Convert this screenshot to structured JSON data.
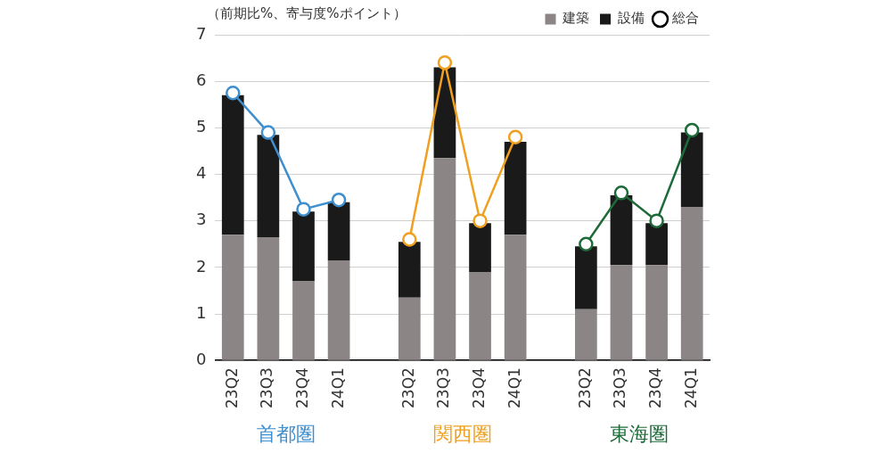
{
  "chart_data": {
    "type": "bar",
    "stacked": true,
    "subtitle": "（前期比%、寄与度%ポイント）",
    "categories": [
      "23Q2",
      "23Q3",
      "23Q4",
      "24Q1",
      null,
      "23Q2",
      "23Q3",
      "23Q4",
      "24Q1",
      null,
      "23Q2",
      "23Q3",
      "23Q4",
      "24Q1"
    ],
    "groups": [
      {
        "name": "首都圏",
        "color": "#3f8fcf"
      },
      {
        "name": "関西圏",
        "color": "#f0a020"
      },
      {
        "name": "東海圏",
        "color": "#1e6b3a"
      }
    ],
    "series": [
      {
        "name": "建築",
        "color": "#8c8585",
        "values": [
          2.7,
          2.65,
          1.7,
          2.15,
          null,
          1.35,
          4.35,
          1.9,
          2.7,
          null,
          1.1,
          2.05,
          2.05,
          3.3
        ]
      },
      {
        "name": "設備",
        "color": "#1a1a1a",
        "values": [
          3.0,
          2.2,
          1.5,
          1.25,
          null,
          1.2,
          1.95,
          1.05,
          2.0,
          null,
          1.35,
          1.5,
          0.9,
          1.6
        ]
      },
      {
        "name": "総合",
        "type": "line",
        "color": "#000000",
        "marker": "circle",
        "values": [
          5.75,
          4.9,
          3.25,
          3.45,
          null,
          2.6,
          6.4,
          3.0,
          4.8,
          null,
          2.5,
          3.6,
          3.0,
          4.95
        ]
      }
    ],
    "ylim": [
      0,
      7
    ],
    "yticks": [
      0,
      1,
      2,
      3,
      4,
      5,
      6,
      7
    ],
    "grid": true,
    "legend": "top"
  }
}
